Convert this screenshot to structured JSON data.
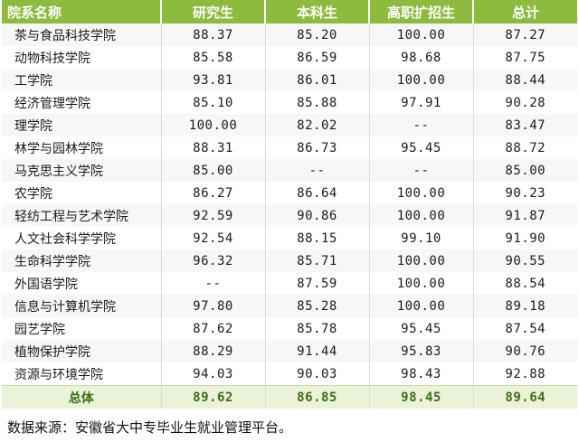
{
  "table": {
    "headers": [
      "院系名称",
      "研究生",
      "本科生",
      "高职扩招生",
      "总计"
    ],
    "rows": [
      [
        "茶与食品科技学院",
        "88.37",
        "85.20",
        "100.00",
        "87.27"
      ],
      [
        "动物科技学院",
        "85.58",
        "86.59",
        "98.68",
        "87.75"
      ],
      [
        "工学院",
        "93.81",
        "86.01",
        "100.00",
        "88.44"
      ],
      [
        "经济管理学院",
        "85.10",
        "85.88",
        "97.91",
        "90.28"
      ],
      [
        "理学院",
        "100.00",
        "82.02",
        "--",
        "83.47"
      ],
      [
        "林学与园林学院",
        "88.31",
        "86.73",
        "95.45",
        "88.72"
      ],
      [
        "马克思主义学院",
        "85.00",
        "--",
        "--",
        "85.00"
      ],
      [
        "农学院",
        "86.27",
        "86.64",
        "100.00",
        "90.23"
      ],
      [
        "轻纺工程与艺术学院",
        "92.59",
        "90.86",
        "100.00",
        "91.87"
      ],
      [
        "人文社会科学学院",
        "92.54",
        "88.15",
        "99.10",
        "91.90"
      ],
      [
        "生命科学学院",
        "96.32",
        "85.71",
        "100.00",
        "90.55"
      ],
      [
        "外国语学院",
        "--",
        "87.59",
        "100.00",
        "88.54"
      ],
      [
        "信息与计算机学院",
        "97.80",
        "85.28",
        "100.00",
        "89.18"
      ],
      [
        "园艺学院",
        "87.62",
        "85.78",
        "95.45",
        "87.54"
      ],
      [
        "植物保护学院",
        "88.29",
        "91.44",
        "95.83",
        "90.76"
      ],
      [
        "资源与环境学院",
        "94.03",
        "90.03",
        "98.43",
        "92.88"
      ]
    ],
    "total": [
      "总体",
      "89.62",
      "86.85",
      "98.45",
      "89.64"
    ]
  },
  "source_note": "数据来源：安徽省大中专毕业生就业管理平台。",
  "colors": {
    "header_bg": "#8dbb3e",
    "header_text": "#ffffff",
    "total_bg": "#eaf2d8",
    "total_text": "#3b6e18",
    "stripe": "#f7f7f7"
  }
}
